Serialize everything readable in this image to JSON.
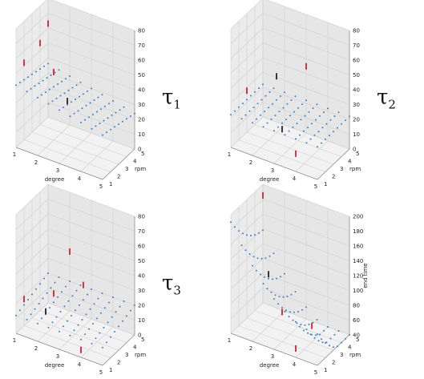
{
  "colors": {
    "pane_side": "#ebebeb",
    "pane_floor": "#f2f2f2",
    "grid": "#d0d0d0",
    "point": "#3a7dc4",
    "stem_red": "#cc2233",
    "stem_dark": "#222222"
  },
  "chart_data": [
    {
      "type": "scatter3d",
      "title": "",
      "annotation": "τ1",
      "xlabel": "degree",
      "ylabel": "rpm",
      "zlabel": "",
      "xlim": [
        1,
        5
      ],
      "ylim": [
        1,
        5
      ],
      "zlim": [
        0,
        80
      ],
      "xticks": [
        1,
        2,
        3,
        4,
        5
      ],
      "yticks": [
        1,
        2,
        3,
        4,
        5
      ],
      "zticks": [
        0,
        10,
        20,
        30,
        40,
        50,
        60,
        70,
        80
      ],
      "surface": {
        "z0": 42,
        "ax": -3.0,
        "by": -1.5
      },
      "stems": [
        {
          "x": 1,
          "y": 2,
          "z": 52,
          "color": "red"
        },
        {
          "x": 1,
          "y": 4,
          "z": 55,
          "color": "red"
        },
        {
          "x": 2,
          "y": 3,
          "z": 46,
          "color": "red"
        },
        {
          "x": 3,
          "y": 2,
          "z": 37,
          "color": "dark"
        },
        {
          "x": 1,
          "y": 5,
          "z": 63,
          "color": "red"
        }
      ]
    },
    {
      "type": "scatter3d",
      "title": "",
      "annotation": "τ2",
      "xlabel": "degree",
      "ylabel": "rpm",
      "zlabel": "",
      "xlim": [
        1,
        5
      ],
      "ylim": [
        1,
        5
      ],
      "zlim": [
        0,
        80
      ],
      "xticks": [
        1,
        2,
        3,
        4,
        5
      ],
      "yticks": [
        1,
        2,
        3,
        4,
        5
      ],
      "zticks": [
        0,
        10,
        20,
        30,
        40,
        50,
        60,
        70,
        80
      ],
      "surface": {
        "z0": 22,
        "ax": 0,
        "by": 0
      },
      "stems": [
        {
          "x": 1,
          "y": 3,
          "z": 28,
          "color": "red"
        },
        {
          "x": 2,
          "y": 4,
          "z": 38,
          "color": "dark"
        },
        {
          "x": 3,
          "y": 2,
          "z": 18,
          "color": "dark"
        },
        {
          "x": 4,
          "y": 1,
          "z": 12,
          "color": "red"
        },
        {
          "x": 3,
          "y": 5,
          "z": 45,
          "color": "red"
        }
      ]
    },
    {
      "type": "scatter3d",
      "title": "",
      "annotation": "τ3",
      "xlabel": "degree",
      "ylabel": "rpm",
      "zlabel": "",
      "xlim": [
        1,
        5
      ],
      "ylim": [
        1,
        5
      ],
      "zlim": [
        0,
        80
      ],
      "xticks": [
        1,
        2,
        3,
        4,
        5
      ],
      "yticks": [
        1,
        2,
        3,
        4,
        5
      ],
      "zticks": [
        0,
        10,
        20,
        30,
        40,
        50,
        60,
        70,
        80
      ],
      "surface": {
        "z0": 12,
        "ax": 0,
        "by": 2.0
      },
      "stems": [
        {
          "x": 1,
          "y": 2,
          "z": 18,
          "color": "red"
        },
        {
          "x": 2,
          "y": 3,
          "z": 22,
          "color": "red"
        },
        {
          "x": 2,
          "y": 2,
          "z": 15,
          "color": "dark"
        },
        {
          "x": 3,
          "y": 4,
          "z": 28,
          "color": "red"
        },
        {
          "x": 4,
          "y": 1,
          "z": 5,
          "color": "red"
        },
        {
          "x": 2,
          "y": 5,
          "z": 40,
          "color": "red"
        }
      ]
    },
    {
      "type": "scatter3d",
      "title": "",
      "annotation": "",
      "xlabel": "degree",
      "ylabel": "rpm",
      "zlabel": "end time",
      "xlim": [
        1,
        5
      ],
      "ylim": [
        1,
        5
      ],
      "zlim": [
        40,
        200
      ],
      "xticks": [
        1,
        2,
        3,
        4,
        5
      ],
      "yticks": [
        1,
        2,
        3,
        4,
        5
      ],
      "zticks": [
        40,
        60,
        80,
        100,
        120,
        140,
        160,
        180,
        200
      ],
      "surface": {
        "z0": 190,
        "ax": -55,
        "by": -25,
        "cx": 7,
        "cy": 3
      },
      "stems": [
        {
          "x": 1,
          "y": 5,
          "z": 185,
          "color": "red"
        },
        {
          "x": 2,
          "y": 3,
          "z": 110,
          "color": "dark"
        },
        {
          "x": 3,
          "y": 2,
          "z": 80,
          "color": "red"
        },
        {
          "x": 4,
          "y": 1,
          "z": 52,
          "color": "red"
        },
        {
          "x": 4,
          "y": 3,
          "z": 62,
          "color": "red"
        }
      ]
    }
  ]
}
